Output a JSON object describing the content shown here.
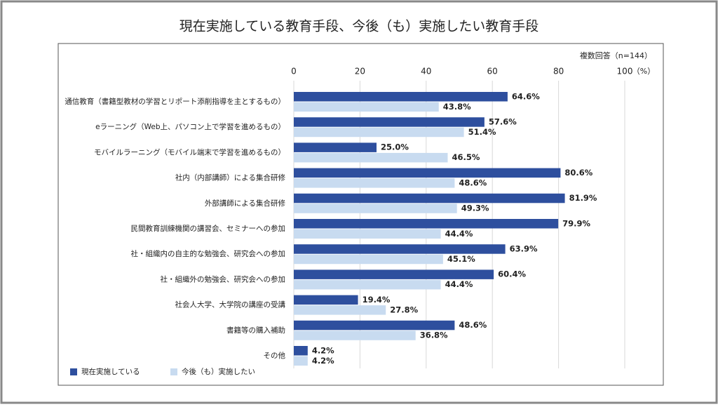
{
  "chart_data": {
    "type": "bar",
    "orientation": "horizontal",
    "title": "現在実施している教育手段、今後（も）実施したい教育手段",
    "note": "複数回答（n=144）",
    "unit_label": "（%）",
    "categories": [
      "通信教育（書籍型教材の学習とリポート添削指導を主とするもの）",
      "eラーニング（Web上、パソコン上で学習を進めるもの）",
      "モバイルラーニング（モバイル端末で学習を進めるもの）",
      "社内（内部講師）による集合研修",
      "外部講師による集合研修",
      "民間教育訓練機関の講習会、セミナーへの参加",
      "社・組織内の自主的な勉強会、研究会への参加",
      "社・組織外の勉強会、研究会への参加",
      "社会人大学、大学院の講座の受講",
      "書籍等の購入補助",
      "その他"
    ],
    "series": [
      {
        "name": "現在実施している",
        "color": "#2e4f9e",
        "values": [
          64.6,
          57.6,
          25.0,
          80.6,
          81.9,
          79.9,
          63.9,
          60.4,
          19.4,
          48.6,
          4.2
        ],
        "value_labels": [
          "64.6%",
          "57.6%",
          "25.0%",
          "80.6%",
          "81.9%",
          "79.9%",
          "63.9%",
          "60.4%",
          "19.4%",
          "48.6%",
          "4.2%"
        ]
      },
      {
        "name": "今後（も）実施したい",
        "color": "#c8dbf0",
        "values": [
          43.8,
          51.4,
          46.5,
          48.6,
          49.3,
          44.4,
          45.1,
          44.4,
          27.8,
          36.8,
          4.2
        ],
        "value_labels": [
          "43.8%",
          "51.4%",
          "46.5%",
          "48.6%",
          "49.3%",
          "44.4%",
          "45.1%",
          "44.4%",
          "27.8%",
          "36.8%",
          "4.2%"
        ]
      }
    ],
    "xlim": [
      0,
      100
    ],
    "xticks": [
      0,
      20,
      40,
      60,
      80,
      100
    ],
    "grid": true,
    "legend": "bottom-left"
  }
}
